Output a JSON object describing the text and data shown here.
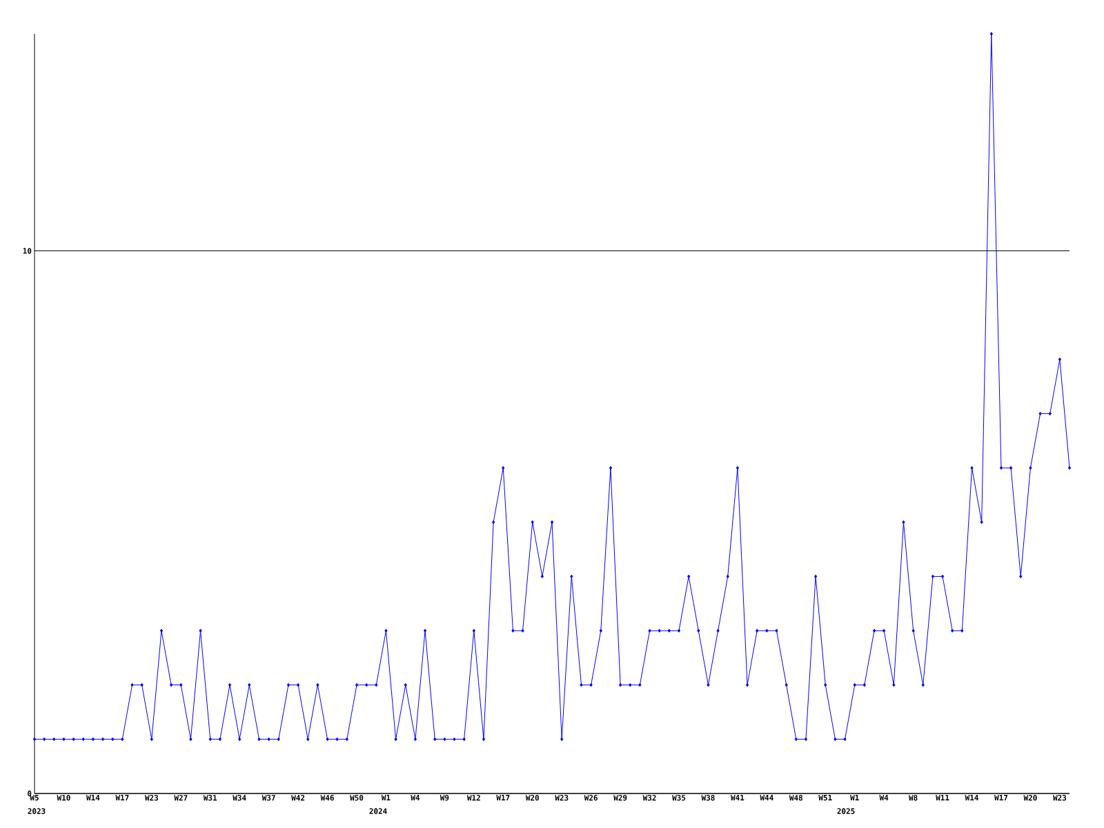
{
  "chart_data": {
    "type": "line",
    "color": "#0000ff",
    "marker": "diamond",
    "grid": "y",
    "ylim": [
      0,
      14
    ],
    "yticks": [
      0,
      10
    ],
    "categories": [
      "W5",
      null,
      null,
      "W10",
      null,
      null,
      "W14",
      null,
      null,
      "W17",
      null,
      null,
      "W23",
      null,
      null,
      "W27",
      null,
      null,
      "W31",
      null,
      null,
      "W34",
      null,
      null,
      "W37",
      null,
      null,
      "W42",
      null,
      null,
      "W46",
      null,
      null,
      "W50",
      null,
      null,
      "W1",
      null,
      null,
      "W4",
      null,
      null,
      "W9",
      null,
      null,
      "W12",
      null,
      null,
      "W17",
      null,
      null,
      "W20",
      null,
      null,
      "W23",
      null,
      null,
      "W26",
      null,
      null,
      "W29",
      null,
      null,
      "W32",
      null,
      null,
      "W35",
      null,
      null,
      "W38",
      null,
      null,
      "W41",
      null,
      null,
      "W44",
      null,
      null,
      "W48",
      null,
      null,
      "W51",
      null,
      null,
      "W1",
      null,
      null,
      "W4",
      null,
      null,
      "W8",
      null,
      null,
      "W11",
      null,
      null,
      "W14",
      null,
      null,
      "W17",
      null,
      null,
      "W20",
      null,
      null,
      "W23",
      null
    ],
    "values": [
      1,
      1,
      1,
      1,
      1,
      1,
      1,
      1,
      1,
      1,
      2,
      2,
      1,
      3,
      2,
      2,
      1,
      3,
      1,
      1,
      2,
      1,
      2,
      1,
      1,
      1,
      2,
      2,
      1,
      2,
      1,
      1,
      1,
      2,
      2,
      2,
      3,
      1,
      2,
      1,
      3,
      1,
      1,
      1,
      1,
      3,
      1,
      5,
      6,
      3,
      3,
      5,
      4,
      5,
      1,
      4,
      2,
      2,
      3,
      6,
      2,
      2,
      2,
      3,
      3,
      3,
      3,
      4,
      3,
      2,
      3,
      4,
      6,
      2,
      3,
      3,
      3,
      2,
      1,
      1,
      4,
      2,
      1,
      1,
      2,
      2,
      3,
      3,
      2,
      5,
      3,
      2,
      4,
      4,
      3,
      3,
      6,
      5,
      14,
      6,
      6,
      4,
      6,
      7,
      7,
      8,
      6
    ],
    "annotations": [
      "2023",
      "2024",
      "2025"
    ]
  }
}
